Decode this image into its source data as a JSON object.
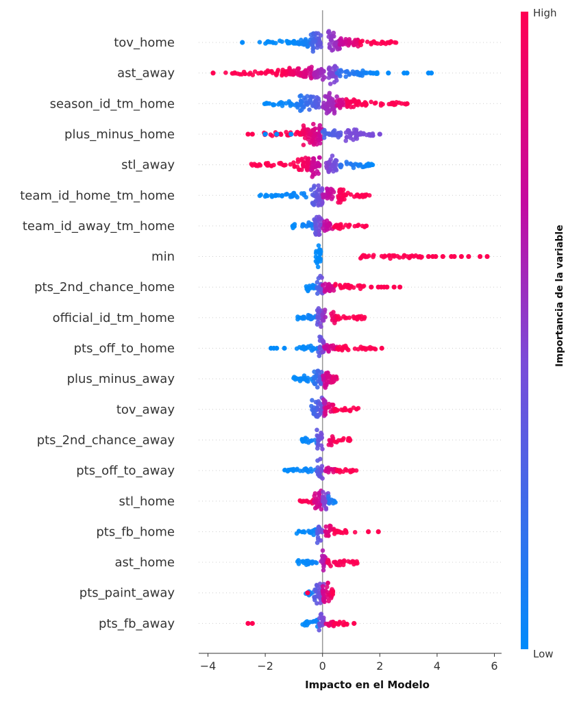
{
  "chart_data": {
    "type": "scatter",
    "subtype": "shap-beeswarm-summary",
    "xlabel": "Impacto en el Modelo",
    "xlim": [
      -4.4,
      6.2
    ],
    "xticks": [
      -4,
      -2,
      0,
      2,
      4,
      6
    ],
    "xtick_labels": [
      "−4",
      "−2",
      "0",
      "2",
      "4",
      "6"
    ],
    "grid": "dotted row guides",
    "colorbar": {
      "title": "Importancia de la variable",
      "high_label": "High",
      "low_label": "Low",
      "low_color": "#008bfb",
      "high_color": "#ff0052",
      "placement": "right"
    },
    "segment_format": "[x_from, x_to, feature_value_from(0=low..1=high), feature_value_to, density_from, density_to]",
    "features": [
      {
        "name": "tov_home",
        "segments": [
          [
            -2.2,
            -1.0,
            0,
            0,
            0.1,
            0.25
          ],
          [
            -1.0,
            -0.4,
            0.02,
            0.1,
            0.3,
            0.5
          ],
          [
            -0.45,
            -0.05,
            0.2,
            0.38,
            0.9,
            0.9
          ],
          [
            0.2,
            0.6,
            0.5,
            0.6,
            1,
            0.9
          ],
          [
            0.6,
            1.3,
            0.7,
            0.9,
            0.6,
            0.3
          ],
          [
            1.3,
            2.6,
            1,
            1,
            0.3,
            0.08
          ]
        ],
        "outliers": [
          [
            -2.8,
            0
          ]
        ]
      },
      {
        "name": "ast_away",
        "segments": [
          [
            -3.4,
            -1.4,
            1,
            1,
            0.08,
            0.25
          ],
          [
            -1.4,
            -0.3,
            1,
            0.75,
            0.35,
            0.65
          ],
          [
            -0.3,
            0.1,
            0.62,
            0.55,
            0.6,
            0.6
          ],
          [
            0.2,
            0.5,
            0.5,
            0.45,
            1,
            0.8
          ],
          [
            0.5,
            2.0,
            0.2,
            0,
            0.5,
            0.08
          ]
        ],
        "outliers": [
          [
            -3.82,
            1
          ],
          [
            2.3,
            0
          ],
          [
            2.85,
            0
          ],
          [
            2.95,
            0
          ],
          [
            3.7,
            0
          ],
          [
            3.8,
            0
          ]
        ]
      },
      {
        "name": "season_id_tm_home",
        "segments": [
          [
            -2.05,
            -0.9,
            0,
            0.05,
            0.08,
            0.35
          ],
          [
            -0.9,
            -0.1,
            0.1,
            0.35,
            0.7,
            0.6
          ],
          [
            0,
            0.5,
            0.55,
            0.6,
            1,
            0.9
          ],
          [
            0.5,
            0.8,
            0.75,
            0.8,
            0.5,
            0.4
          ],
          [
            0.8,
            1.3,
            0.95,
            1,
            0.5,
            0.45
          ],
          [
            1.3,
            2.97,
            1,
            1,
            0.25,
            0.08
          ]
        ],
        "outliers": []
      },
      {
        "name": "plus_minus_home",
        "segments": [
          [
            -2.2,
            -0.7,
            1,
            1,
            0.1,
            0.25
          ],
          [
            -0.7,
            0,
            0.95,
            0.7,
            1,
            0.9
          ],
          [
            0,
            0.7,
            0.25,
            0.35,
            0.4,
            0.35
          ],
          [
            0.8,
            1.3,
            0.45,
            0.45,
            0.6,
            0.5
          ],
          [
            1.3,
            1.9,
            0.45,
            0.45,
            0.25,
            0.1
          ]
        ],
        "outliers": [
          [
            -2.6,
            1
          ],
          [
            -2.45,
            1
          ],
          [
            -2.0,
            0
          ],
          [
            -1.6,
            0
          ],
          [
            -1.1,
            0
          ],
          [
            2.0,
            0.45
          ]
        ]
      },
      {
        "name": "stl_away",
        "segments": [
          [
            -2.5,
            -0.9,
            1,
            1,
            0.12,
            0.2
          ],
          [
            -0.9,
            -0.4,
            1,
            0.9,
            0.6,
            0.6
          ],
          [
            -0.4,
            -0.1,
            0.75,
            0.7,
            1,
            1
          ],
          [
            0.1,
            0.5,
            0.5,
            0.4,
            0.8,
            0.7
          ],
          [
            0.5,
            1.78,
            0.2,
            0,
            0.4,
            0.1
          ]
        ],
        "outliers": []
      },
      {
        "name": "team_id_home_tm_home",
        "segments": [
          [
            -2.25,
            -0.5,
            0,
            0.05,
            0.08,
            0.3
          ],
          [
            -0.4,
            0,
            0.3,
            0.45,
            1,
            0.9
          ],
          [
            0,
            0.4,
            0.65,
            0.75,
            0.7,
            0.6
          ],
          [
            0.5,
            0.8,
            0.95,
            1,
            0.8,
            0.6
          ],
          [
            0.8,
            1.7,
            1,
            1,
            0.3,
            0.08
          ]
        ],
        "outliers": []
      },
      {
        "name": "team_id_away_tm_home",
        "segments": [
          [
            -1.05,
            -0.3,
            0,
            0.1,
            0.2,
            0.35
          ],
          [
            -0.3,
            0,
            0.35,
            0.5,
            1,
            0.9
          ],
          [
            0,
            0.4,
            0.65,
            0.8,
            0.5,
            0.4
          ],
          [
            0.4,
            1.6,
            1,
            1,
            0.3,
            0.1
          ]
        ],
        "outliers": []
      },
      {
        "name": "min",
        "segments": [
          [
            -0.25,
            -0.05,
            0,
            0,
            1,
            1
          ],
          [
            1.1,
            3.5,
            1,
            1,
            0.2,
            0.15
          ]
        ],
        "outliers": [
          [
            3.7,
            1
          ],
          [
            3.85,
            1
          ],
          [
            3.95,
            1
          ],
          [
            4.2,
            1
          ],
          [
            4.5,
            1
          ],
          [
            4.6,
            1
          ],
          [
            4.85,
            1
          ],
          [
            5.1,
            1
          ],
          [
            5.5,
            1
          ],
          [
            5.75,
            1
          ]
        ]
      },
      {
        "name": "pts_2nd_chance_home",
        "segments": [
          [
            -0.6,
            -0.2,
            0,
            0.05,
            0.3,
            0.4
          ],
          [
            -0.2,
            0,
            0.25,
            0.45,
            1,
            0.9
          ],
          [
            0,
            0.4,
            0.7,
            0.8,
            0.5,
            0.4
          ],
          [
            0.4,
            1.5,
            1,
            1,
            0.3,
            0.12
          ]
        ],
        "outliers": [
          [
            1.7,
            1
          ],
          [
            1.95,
            1
          ],
          [
            2.05,
            1
          ],
          [
            2.15,
            1
          ],
          [
            2.25,
            1
          ],
          [
            2.5,
            1
          ],
          [
            2.7,
            1
          ]
        ]
      },
      {
        "name": "official_id_tm_home",
        "segments": [
          [
            -0.9,
            -0.2,
            0,
            0.1,
            0.2,
            0.35
          ],
          [
            -0.2,
            0.1,
            0.35,
            0.6,
            1,
            0.9
          ],
          [
            0.3,
            0.5,
            0.9,
            0.95,
            0.5,
            0.4
          ],
          [
            0.5,
            1.5,
            1,
            1,
            0.3,
            0.12
          ]
        ],
        "outliers": []
      },
      {
        "name": "pts_off_to_home",
        "segments": [
          [
            -0.9,
            -0.15,
            0,
            0.05,
            0.2,
            0.3
          ],
          [
            -0.15,
            0.05,
            0.3,
            0.5,
            1,
            1
          ],
          [
            0.05,
            0.5,
            0.7,
            0.85,
            0.4,
            0.35
          ],
          [
            0.5,
            1.85,
            1,
            1,
            0.3,
            0.1
          ]
        ],
        "outliers": [
          [
            -1.8,
            0
          ],
          [
            -1.7,
            0
          ],
          [
            -1.6,
            0
          ],
          [
            -1.33,
            0
          ],
          [
            2.07,
            1
          ]
        ]
      },
      {
        "name": "plus_minus_away",
        "segments": [
          [
            -1.02,
            -0.3,
            0,
            0.05,
            0.2,
            0.35
          ],
          [
            -0.3,
            0,
            0.15,
            0.35,
            0.8,
            0.9
          ],
          [
            0,
            0.4,
            0.7,
            0.9,
            0.8,
            0.6
          ],
          [
            0.4,
            0.5,
            0.85,
            0.9,
            0.3,
            0.2
          ]
        ],
        "outliers": []
      },
      {
        "name": "tov_away",
        "segments": [
          [
            -0.4,
            0,
            0.2,
            0.4,
            0.8,
            1
          ],
          [
            0,
            0.1,
            0.6,
            0.65,
            1,
            1
          ],
          [
            0.1,
            0.4,
            0.8,
            0.9,
            0.6,
            0.4
          ],
          [
            0.4,
            1.25,
            1,
            1,
            0.3,
            0.12
          ]
        ],
        "outliers": []
      },
      {
        "name": "pts_2nd_chance_away",
        "segments": [
          [
            -0.73,
            -0.2,
            0,
            0.1,
            0.15,
            0.35
          ],
          [
            -0.2,
            0,
            0.35,
            0.45,
            1,
            0.9
          ],
          [
            0.2,
            0.4,
            0.9,
            0.95,
            0.5,
            0.4
          ],
          [
            0.4,
            1.0,
            1,
            1,
            0.25,
            0.12
          ]
        ],
        "outliers": []
      },
      {
        "name": "pts_off_to_away",
        "segments": [
          [
            -1.33,
            -0.2,
            0,
            0.05,
            0.12,
            0.3
          ],
          [
            -0.2,
            0,
            0.3,
            0.45,
            1,
            0.9
          ],
          [
            0.1,
            0.5,
            0.75,
            0.9,
            0.35,
            0.3
          ],
          [
            0.5,
            1.2,
            1,
            1,
            0.25,
            0.12
          ]
        ],
        "outliers": []
      },
      {
        "name": "stl_home",
        "segments": [
          [
            -0.8,
            -0.3,
            1,
            0.95,
            0.15,
            0.35
          ],
          [
            -0.3,
            0,
            0.8,
            0.7,
            0.8,
            0.9
          ],
          [
            0,
            0.2,
            0.5,
            0.45,
            1,
            0.8
          ],
          [
            0.2,
            0.45,
            0.15,
            0.05,
            0.5,
            0.2
          ]
        ],
        "outliers": []
      },
      {
        "name": "pts_fb_home",
        "segments": [
          [
            -0.9,
            -0.2,
            0,
            0.05,
            0.2,
            0.3
          ],
          [
            -0.2,
            0,
            0.3,
            0.45,
            1,
            0.9
          ],
          [
            0.1,
            0.4,
            0.8,
            0.95,
            0.6,
            0.4
          ],
          [
            0.4,
            1.15,
            1,
            1,
            0.25,
            0.12
          ]
        ],
        "outliers": [
          [
            1.6,
            1
          ],
          [
            1.95,
            1
          ]
        ]
      },
      {
        "name": "ast_home",
        "segments": [
          [
            -0.9,
            -0.2,
            0,
            0.05,
            0.2,
            0.3
          ],
          [
            -0.05,
            0.1,
            0.6,
            0.7,
            1,
            1
          ],
          [
            0.1,
            1.25,
            0.95,
            1,
            0.35,
            0.15
          ]
        ],
        "outliers": []
      },
      {
        "name": "pts_paint_away",
        "segments": [
          [
            -0.68,
            -0.3,
            0,
            0.1,
            0.12,
            0.3
          ],
          [
            -0.3,
            0.05,
            0.3,
            0.5,
            0.8,
            1
          ],
          [
            0,
            0.35,
            0.75,
            0.95,
            1,
            0.7
          ],
          [
            0.35,
            0.4,
            1,
            1,
            0.3,
            0.2
          ]
        ],
        "outliers": [
          [
            -0.52,
            1
          ]
        ]
      },
      {
        "name": "pts_fb_away",
        "segments": [
          [
            -0.7,
            -0.15,
            0,
            0.05,
            0.2,
            0.3
          ],
          [
            -0.15,
            0.05,
            0.35,
            0.5,
            1,
            0.9
          ],
          [
            0.1,
            0.4,
            0.85,
            0.95,
            0.5,
            0.35
          ],
          [
            0.4,
            0.9,
            1,
            1,
            0.25,
            0.12
          ]
        ],
        "outliers": [
          [
            -2.6,
            1
          ],
          [
            -2.45,
            1
          ],
          [
            1.1,
            1
          ]
        ]
      }
    ]
  }
}
